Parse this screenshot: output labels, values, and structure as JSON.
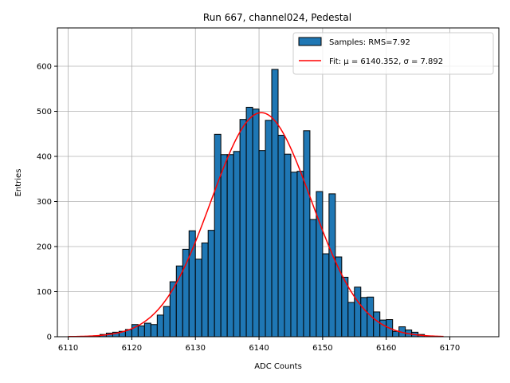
{
  "chart_data": {
    "type": "bar",
    "title": "Run 667, channel024, Pedestal",
    "xlabel": "ADC Counts",
    "ylabel": "Entries",
    "xlim": [
      6108.3,
      6177.7
    ],
    "ylim": [
      0,
      685
    ],
    "xticks": [
      6110,
      6120,
      6130,
      6140,
      6150,
      6160,
      6170
    ],
    "yticks": [
      0,
      100,
      200,
      300,
      400,
      500,
      600
    ],
    "grid": true,
    "legend_position": "top-right",
    "bin_width": 1,
    "histogram": {
      "name": "Samples: RMS=7.92",
      "color": "#1f77b4",
      "edge_color": "#000000",
      "bins": [
        6114,
        6115,
        6116,
        6117,
        6118,
        6119,
        6120,
        6121,
        6122,
        6123,
        6124,
        6125,
        6126,
        6127,
        6128,
        6129,
        6130,
        6131,
        6132,
        6133,
        6134,
        6135,
        6136,
        6137,
        6138,
        6139,
        6140,
        6141,
        6142,
        6143,
        6144,
        6145,
        6146,
        6147,
        6148,
        6149,
        6150,
        6151,
        6152,
        6153,
        6154,
        6155,
        6156,
        6157,
        6158,
        6159,
        6160,
        6161,
        6162,
        6163,
        6164,
        6165
      ],
      "values": [
        2,
        5,
        8,
        10,
        12,
        16,
        27,
        24,
        30,
        27,
        48,
        67,
        122,
        157,
        194,
        235,
        172,
        208,
        236,
        449,
        404,
        404,
        411,
        482,
        509,
        505,
        413,
        480,
        593,
        447,
        405,
        365,
        367,
        457,
        260,
        322,
        184,
        317,
        177,
        132,
        76,
        110,
        87,
        88,
        55,
        37,
        38,
        12,
        22,
        15,
        10,
        5
      ]
    },
    "fit": {
      "name": "Fit: μ = 6140.352, σ = 7.892",
      "color": "#ff0000",
      "mu": 6140.352,
      "sigma": 7.892,
      "amplitude": 497,
      "x_range": [
        6110,
        6169
      ]
    }
  }
}
